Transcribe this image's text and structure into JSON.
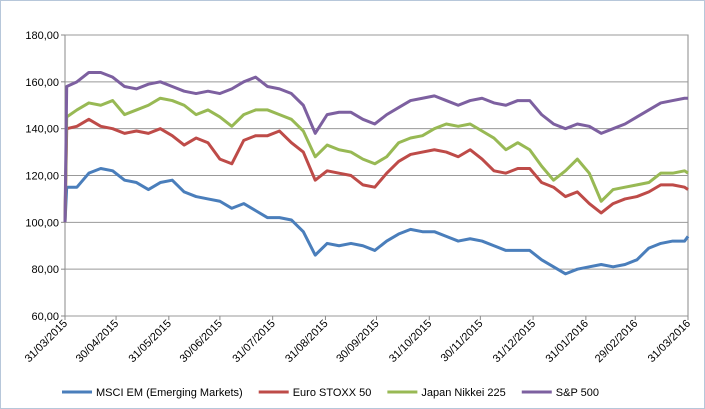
{
  "chart_data": {
    "type": "line",
    "x": [
      "31/03/2015",
      "01/04/2015",
      "07/04/2015",
      "14/04/2015",
      "21/04/2015",
      "28/04/2015",
      "05/05/2015",
      "12/05/2015",
      "19/05/2015",
      "26/05/2015",
      "02/06/2015",
      "09/06/2015",
      "16/06/2015",
      "23/06/2015",
      "30/06/2015",
      "07/07/2015",
      "14/07/2015",
      "21/07/2015",
      "28/07/2015",
      "04/08/2015",
      "11/08/2015",
      "18/08/2015",
      "25/08/2015",
      "01/09/2015",
      "08/09/2015",
      "15/09/2015",
      "22/09/2015",
      "29/09/2015",
      "06/10/2015",
      "13/10/2015",
      "20/10/2015",
      "27/10/2015",
      "03/11/2015",
      "10/11/2015",
      "17/11/2015",
      "24/11/2015",
      "01/12/2015",
      "08/12/2015",
      "15/12/2015",
      "22/12/2015",
      "29/12/2015",
      "05/01/2016",
      "12/01/2016",
      "19/01/2016",
      "26/01/2016",
      "02/02/2016",
      "09/02/2016",
      "16/02/2016",
      "23/02/2016",
      "01/03/2016",
      "08/03/2016",
      "15/03/2016",
      "22/03/2016",
      "29/03/2016",
      "31/03/2016"
    ],
    "series": [
      {
        "name": "MSCI EM (Emerging Markets)",
        "color": "#4a7ebb",
        "values": [
          100,
          115,
          115,
          121,
          123,
          122,
          118,
          117,
          114,
          117,
          118,
          113,
          111,
          110,
          109,
          106,
          108,
          105,
          102,
          102,
          101,
          96,
          86,
          91,
          90,
          91,
          90,
          88,
          92,
          95,
          97,
          96,
          96,
          94,
          92,
          93,
          92,
          90,
          88,
          88,
          88,
          84,
          81,
          78,
          80,
          81,
          82,
          81,
          82,
          84,
          89,
          91,
          92,
          92,
          94
        ]
      },
      {
        "name": "Euro STOXX 50",
        "color": "#be4b48",
        "values": [
          100,
          140,
          141,
          144,
          141,
          140,
          138,
          139,
          138,
          140,
          137,
          133,
          136,
          134,
          127,
          125,
          135,
          137,
          137,
          139,
          134,
          130,
          118,
          122,
          121,
          120,
          116,
          115,
          121,
          126,
          129,
          130,
          131,
          130,
          128,
          131,
          127,
          122,
          121,
          123,
          123,
          117,
          115,
          111,
          113,
          108,
          104,
          108,
          110,
          111,
          113,
          116,
          116,
          115,
          114
        ]
      },
      {
        "name": "Japan Nikkei 225",
        "color": "#98b954",
        "values": [
          100,
          145,
          148,
          151,
          150,
          152,
          146,
          148,
          150,
          153,
          152,
          150,
          146,
          148,
          145,
          141,
          146,
          148,
          148,
          146,
          144,
          139,
          128,
          133,
          131,
          130,
          127,
          125,
          128,
          134,
          136,
          137,
          140,
          142,
          141,
          142,
          139,
          136,
          131,
          134,
          131,
          124,
          118,
          122,
          127,
          121,
          109,
          114,
          115,
          116,
          117,
          121,
          121,
          122,
          121
        ]
      },
      {
        "name": "S&P 500",
        "color": "#7d60a0",
        "values": [
          100,
          158,
          160,
          164,
          164,
          162,
          158,
          157,
          159,
          160,
          158,
          156,
          155,
          156,
          155,
          157,
          160,
          162,
          158,
          157,
          155,
          150,
          138,
          146,
          147,
          147,
          144,
          142,
          146,
          149,
          152,
          153,
          154,
          152,
          150,
          152,
          153,
          151,
          150,
          152,
          152,
          146,
          142,
          140,
          142,
          141,
          138,
          140,
          142,
          145,
          148,
          151,
          152,
          153,
          153
        ]
      }
    ],
    "xlim": [
      "31/03/2015",
      "31/03/2016"
    ],
    "xticks": [
      "31/03/2015",
      "30/04/2015",
      "31/05/2015",
      "30/06/2015",
      "31/07/2015",
      "31/08/2015",
      "30/09/2015",
      "31/10/2015",
      "30/11/2015",
      "31/12/2015",
      "31/01/2016",
      "29/02/2016",
      "31/03/2016"
    ],
    "ylim": [
      60,
      180
    ],
    "yticks": [
      {
        "value": 60,
        "label": "60,00"
      },
      {
        "value": 80,
        "label": "80,00"
      },
      {
        "value": 100,
        "label": "100,00"
      },
      {
        "value": 120,
        "label": "120,00"
      },
      {
        "value": 140,
        "label": "140,00"
      },
      {
        "value": 160,
        "label": "160,00"
      },
      {
        "value": 180,
        "label": "180,00"
      }
    ],
    "grid": true,
    "legend": "bottom"
  }
}
